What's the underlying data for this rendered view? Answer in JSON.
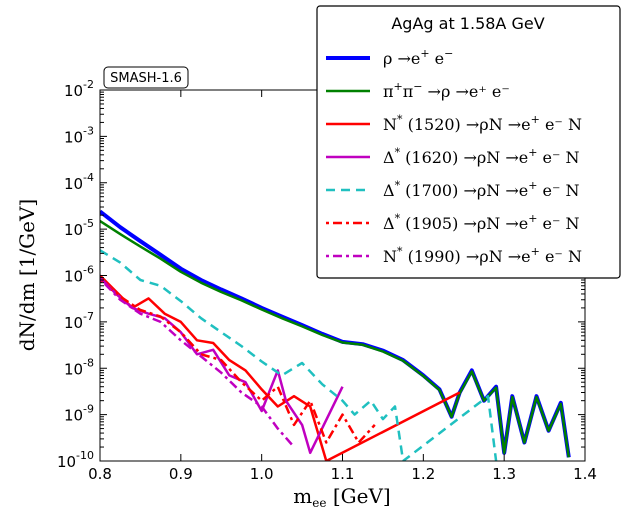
{
  "chart_data": {
    "type": "line",
    "title": "AgAg at 1.58A GeV",
    "tag": "SMASH-1.6",
    "xlabel": "m_ee [GeV]",
    "xlabel_main": "m",
    "xlabel_sub": "ee",
    "xlabel_unit": " [GeV]",
    "ylabel": "dN/dm [1/GeV]",
    "xlim": [
      0.8,
      1.4
    ],
    "ylim_log10": [
      -10,
      -2
    ],
    "yscale": "log",
    "x_ticks": [
      "0.8",
      "0.9",
      "1.0",
      "1.1",
      "1.2",
      "1.3",
      "1.4"
    ],
    "y_tick_exponents": [
      "-2",
      "-3",
      "-4",
      "-5",
      "-6",
      "-7",
      "-8",
      "-9",
      "-10"
    ],
    "legend_position": "top-right",
    "series": [
      {
        "name": "ρ→e⁺e⁻",
        "label_main": "ρ →e",
        "label_sup": "+",
        "label_rest": " e",
        "label_sup2": "−",
        "label_tail": "",
        "color": "#0000ff",
        "dash": "solid",
        "width": 4,
        "x": [
          0.8,
          0.825,
          0.85,
          0.875,
          0.9,
          0.925,
          0.95,
          0.975,
          1.0,
          1.025,
          1.05,
          1.075,
          1.1,
          1.125,
          1.15,
          1.175,
          1.2,
          1.22,
          1.235,
          1.245,
          1.26,
          1.275,
          1.29,
          1.3,
          1.31,
          1.325,
          1.34,
          1.355,
          1.37,
          1.38
        ],
        "y": [
          2.4e-05,
          1.1e-05,
          5.5e-06,
          2.8e-06,
          1.4e-06,
          8e-07,
          5e-07,
          3.2e-07,
          2e-07,
          1.3e-07,
          8.5e-08,
          5.5e-08,
          3.7e-08,
          3.3e-08,
          2.4e-08,
          1.5e-08,
          7e-09,
          3.5e-09,
          9e-10,
          3e-09,
          9e-09,
          2e-09,
          4e-09,
          1.5e-10,
          2.5e-09,
          2.5e-10,
          2.5e-09,
          4.5e-10,
          1.8e-09,
          1.2e-10
        ]
      },
      {
        "name": "π⁺π⁻ →ρ→e⁺e⁻",
        "label_main": "π",
        "label_sup": "+",
        "label_rest": "π",
        "label_sup2": "−",
        "label_tail": "  →ρ →e⁺ e⁻",
        "color": "#008000",
        "dash": "solid",
        "width": 2.5,
        "x": [
          0.8,
          0.825,
          0.85,
          0.875,
          0.9,
          0.925,
          0.95,
          0.975,
          1.0,
          1.025,
          1.05,
          1.075,
          1.1,
          1.125,
          1.15,
          1.175,
          1.2,
          1.22,
          1.235,
          1.245,
          1.26,
          1.275,
          1.29,
          1.3,
          1.31,
          1.325,
          1.34,
          1.355,
          1.37,
          1.38
        ],
        "y": [
          1.5e-05,
          7.8e-06,
          4.2e-06,
          2.3e-06,
          1.2e-06,
          7e-07,
          4.4e-07,
          2.9e-07,
          1.85e-07,
          1.2e-07,
          8e-08,
          5.2e-08,
          3.6e-08,
          3.2e-08,
          2.3e-08,
          1.45e-08,
          6.8e-09,
          3.4e-09,
          9e-10,
          2.9e-09,
          8.5e-09,
          2e-09,
          3.8e-09,
          1.5e-10,
          2.4e-09,
          2.5e-10,
          2.4e-09,
          4.5e-10,
          1.7e-09,
          1.2e-10
        ]
      },
      {
        "name": "N*(1520)→ρN→e⁺e⁻ N",
        "label_main": "N",
        "label_sup": "*",
        "label_rest": " (1520) →ρN →e",
        "label_sup2": "+",
        "label_tail": " e⁻ N",
        "color": "#ff0000",
        "dash": "solid",
        "width": 2.5,
        "x": [
          0.8,
          0.82,
          0.84,
          0.86,
          0.88,
          0.9,
          0.92,
          0.94,
          0.96,
          0.98,
          1.0,
          1.02,
          1.04,
          1.06,
          1.08,
          1.245
        ],
        "y": [
          1e-06,
          4.5e-07,
          2e-07,
          3.2e-07,
          1.5e-07,
          1e-07,
          4e-08,
          3.5e-08,
          1.5e-08,
          9e-09,
          3.5e-09,
          1.5e-09,
          2.5e-09,
          1.5e-09,
          1e-10,
          3e-09
        ]
      },
      {
        "name": "Δ*(1620)→ρN→e⁺e⁻ N",
        "label_main": "Δ",
        "label_sup": "*",
        "label_rest": " (1620) →ρN →e",
        "label_sup2": "+",
        "label_tail": " e⁻ N",
        "color": "#c000c0",
        "dash": "solid",
        "width": 2.5,
        "x": [
          0.8,
          0.82,
          0.84,
          0.86,
          0.88,
          0.9,
          0.92,
          0.94,
          0.96,
          0.98,
          1.0,
          1.02,
          1.03,
          1.05,
          1.06,
          1.1
        ],
        "y": [
          9e-07,
          4e-07,
          2e-07,
          1.5e-07,
          1.2e-07,
          6e-08,
          2e-08,
          2.5e-08,
          7e-09,
          5e-09,
          1.2e-09,
          9e-09,
          2e-09,
          6e-10,
          1.5e-10,
          4e-09
        ]
      },
      {
        "name": "Δ*(1700)→ρN→e⁺e⁻ N",
        "label_main": "Δ",
        "label_sup": "*",
        "label_rest": " (1700) →ρN →e",
        "label_sup2": "+",
        "label_tail": " e⁻ N",
        "color": "#20c0c0",
        "dash": "dash",
        "width": 2.5,
        "x": [
          0.8,
          0.825,
          0.85,
          0.875,
          0.9,
          0.925,
          0.95,
          0.975,
          1.0,
          1.025,
          1.05,
          1.075,
          1.1,
          1.115,
          1.135,
          1.15,
          1.165,
          1.175,
          1.28,
          1.29
        ],
        "y": [
          3.5e-06,
          1.9e-06,
          8e-07,
          6e-07,
          2.8e-07,
          1.2e-07,
          6e-08,
          3e-08,
          1.4e-08,
          7e-09,
          1.3e-08,
          4.5e-09,
          2e-09,
          1e-09,
          2e-09,
          8e-10,
          1.5e-09,
          1e-10,
          2.5e-09,
          1e-10
        ]
      },
      {
        "name": "Δ*(1905)→ρN→e⁺e⁻ N",
        "label_main": "Δ",
        "label_sup": "*",
        "label_rest": " (1905) →ρN →e",
        "label_sup2": "+",
        "label_tail": " e⁻ N",
        "color": "#ff0000",
        "dash": "dashdot",
        "width": 2.5,
        "x": [
          0.8,
          0.825,
          0.85,
          0.875,
          0.9,
          0.925,
          0.95,
          0.975,
          1.0,
          1.02,
          1.04,
          1.06,
          1.08,
          1.1,
          1.12,
          1.14
        ],
        "y": [
          8e-07,
          3.5e-07,
          1.8e-07,
          1.3e-07,
          6e-08,
          2e-08,
          1.5e-08,
          5e-09,
          2e-09,
          4e-09,
          6e-10,
          2e-09,
          2.5e-10,
          1e-09,
          2.5e-10,
          6e-10
        ]
      },
      {
        "name": "N*(1990)→ρN→e⁺e⁻ N",
        "label_main": "N",
        "label_sup": "*",
        "label_rest": " (1990) →ρN →e",
        "label_sup2": "+",
        "label_tail": " e⁻ N",
        "color": "#c000c0",
        "dash": "dashdot",
        "width": 2.5,
        "x": [
          0.8,
          0.825,
          0.85,
          0.875,
          0.9,
          0.925,
          0.95,
          0.975,
          1.0,
          1.02,
          1.04
        ],
        "y": [
          8.5e-07,
          3e-07,
          1.5e-07,
          1e-07,
          4e-08,
          1.8e-08,
          8e-09,
          3e-09,
          1.5e-09,
          5e-10,
          2e-10
        ]
      }
    ]
  }
}
